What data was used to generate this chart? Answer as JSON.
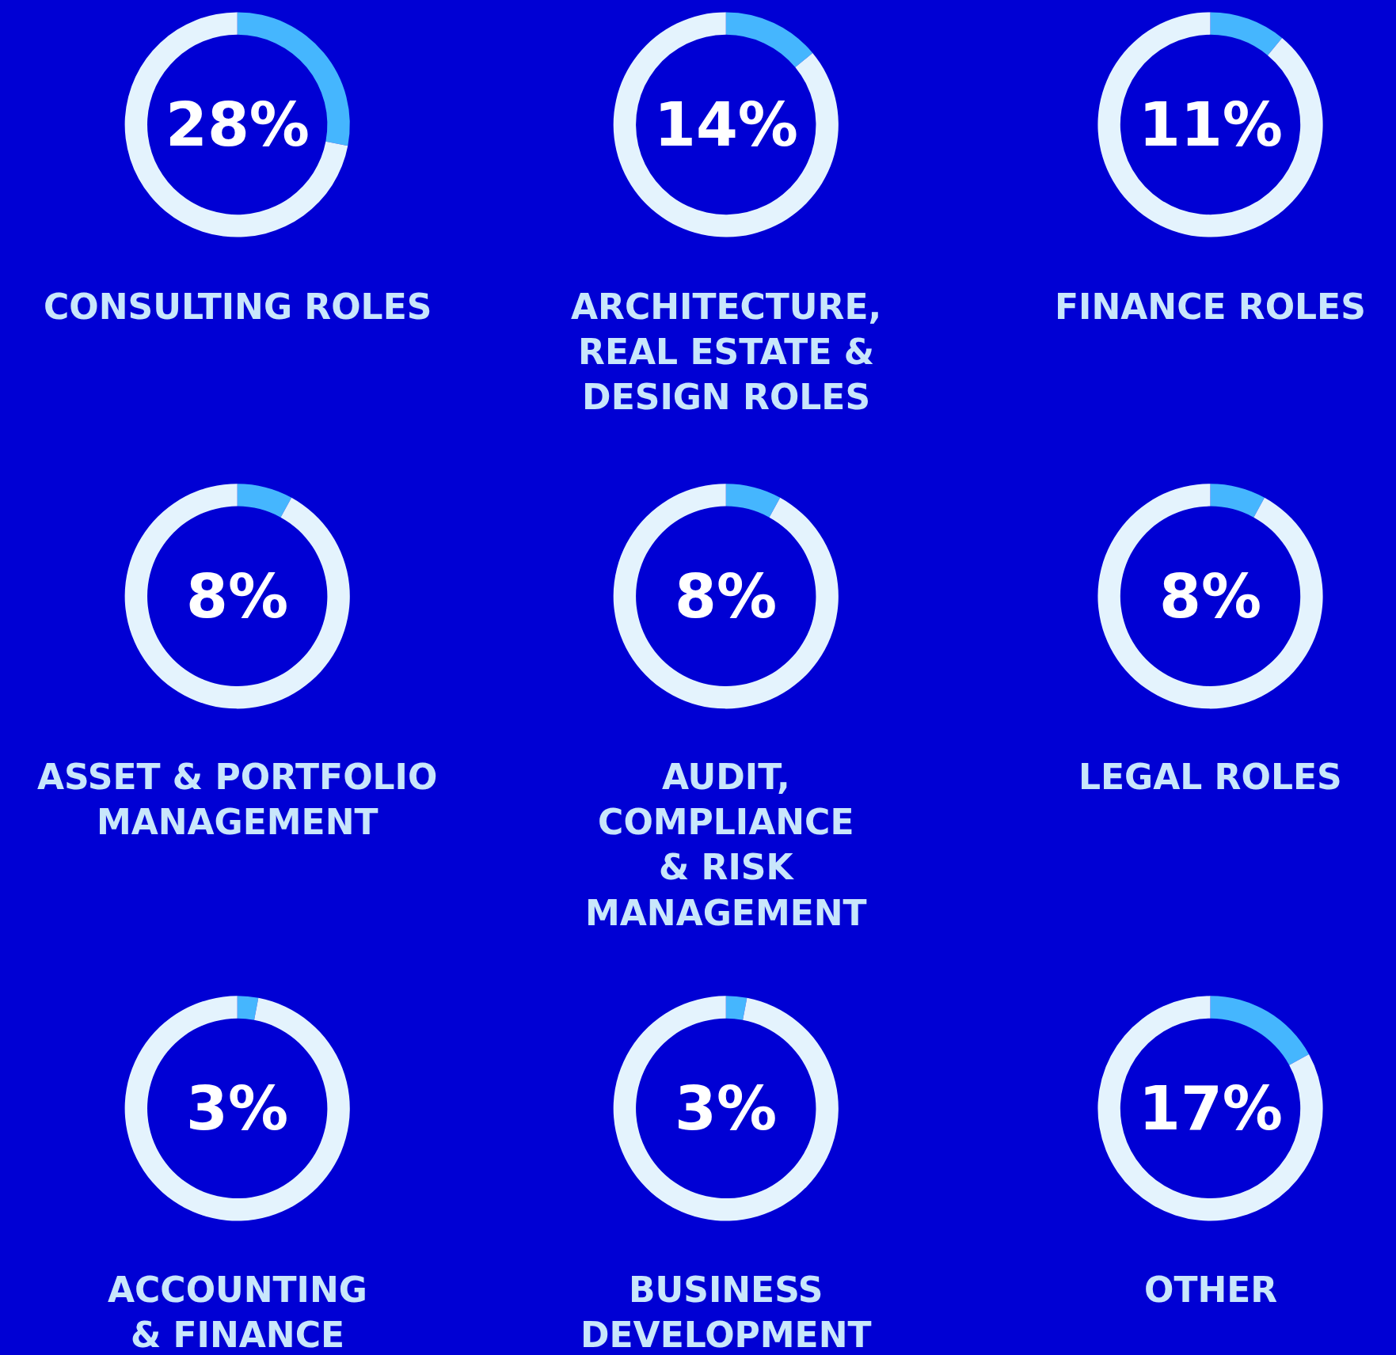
{
  "chart_data": [
    {
      "type": "donut",
      "title": "CONSULTING ROLES",
      "categories": [
        null,
        null
      ],
      "values": [
        28,
        72
      ],
      "colors": [
        "#45b6fe",
        "#e4f3fd"
      ],
      "annotations": [
        "28%"
      ]
    },
    {
      "type": "donut",
      "title": "ARCHITECTURE,\nREAL ESTATE &\nDESIGN ROLES",
      "categories": [
        null,
        null
      ],
      "values": [
        14,
        86
      ],
      "colors": [
        "#45b6fe",
        "#e4f3fd"
      ],
      "annotations": [
        "14%"
      ]
    },
    {
      "type": "donut",
      "title": "FINANCE ROLES",
      "categories": [
        null,
        null
      ],
      "values": [
        11,
        89
      ],
      "colors": [
        "#45b6fe",
        "#e4f3fd"
      ],
      "annotations": [
        "11%"
      ]
    },
    {
      "type": "donut",
      "title": "ASSET & PORTFOLIO\nMANAGEMENT",
      "categories": [
        null,
        null
      ],
      "values": [
        8,
        92
      ],
      "colors": [
        "#45b6fe",
        "#e4f3fd"
      ],
      "annotations": [
        "8%"
      ]
    },
    {
      "type": "donut",
      "title": "AUDIT,\nCOMPLIANCE\n& RISK\nMANAGEMENT",
      "categories": [
        null,
        null
      ],
      "values": [
        8,
        92
      ],
      "colors": [
        "#45b6fe",
        "#e4f3fd"
      ],
      "annotations": [
        "8%"
      ]
    },
    {
      "type": "donut",
      "title": "LEGAL ROLES",
      "categories": [
        null,
        null
      ],
      "values": [
        8,
        92
      ],
      "colors": [
        "#45b6fe",
        "#e4f3fd"
      ],
      "annotations": [
        "8%"
      ]
    },
    {
      "type": "donut",
      "title": "ACCOUNTING\n& FINANCE",
      "categories": [
        null,
        null
      ],
      "values": [
        3,
        97
      ],
      "colors": [
        "#45b6fe",
        "#e4f3fd"
      ],
      "annotations": [
        "3%"
      ]
    },
    {
      "type": "donut",
      "title": "BUSINESS\nDEVELOPMENT",
      "categories": [
        null,
        null
      ],
      "values": [
        3,
        97
      ],
      "colors": [
        "#45b6fe",
        "#e4f3fd"
      ],
      "annotations": [
        "3%"
      ]
    },
    {
      "type": "donut",
      "title": "OTHER",
      "categories": [
        null,
        null
      ],
      "values": [
        17,
        83
      ],
      "colors": [
        "#45b6fe",
        "#e4f3fd"
      ],
      "annotations": [
        "17%"
      ]
    }
  ]
}
